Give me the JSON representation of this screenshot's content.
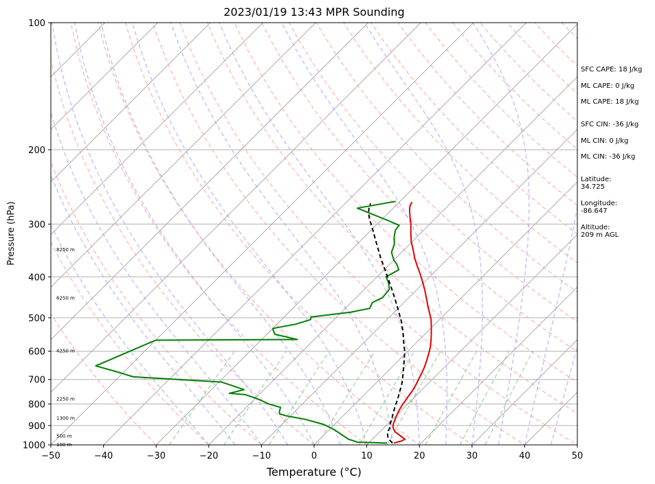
{
  "chart_data": {
    "type": "line",
    "title": "2023/01/19 13:43 MPR Sounding",
    "xlabel": "Temperature (°C)",
    "ylabel": "Pressure (hPa)",
    "xlim": [
      -50,
      50
    ],
    "ylim": [
      1000,
      100
    ],
    "y_scale": "log",
    "x_ticks": [
      -50,
      -40,
      -30,
      -20,
      -10,
      0,
      10,
      20,
      30,
      40,
      50
    ],
    "y_ticks": [
      1000,
      900,
      800,
      700,
      600,
      500,
      400,
      300,
      200,
      100
    ],
    "grid": "horizontal at labeled pressure ticks",
    "skew": "skew-T log-P (isotherms skewed 45°)",
    "series": [
      {
        "kind": "temperature",
        "color": "#e00000",
        "points": [
          [
            14.8,
            990
          ],
          [
            15.8,
            980
          ],
          [
            16.2,
            970
          ],
          [
            14.5,
            950
          ],
          [
            12.8,
            930
          ],
          [
            11.7,
            910
          ],
          [
            11,
            890
          ],
          [
            10.3,
            860
          ],
          [
            9.6,
            830
          ],
          [
            9.1,
            800
          ],
          [
            9,
            790
          ],
          [
            8.7,
            770
          ],
          [
            8.4,
            745
          ],
          [
            7.9,
            720
          ],
          [
            7.4,
            700
          ],
          [
            6.9,
            680
          ],
          [
            6.2,
            655
          ],
          [
            5.3,
            630
          ],
          [
            4.3,
            605
          ],
          [
            3.4,
            585
          ],
          [
            2.3,
            565
          ],
          [
            1.1,
            545
          ],
          [
            -0.2,
            525
          ],
          [
            -1.6,
            505
          ],
          [
            -2.9,
            490
          ],
          [
            -4.7,
            470
          ],
          [
            -6.5,
            450
          ],
          [
            -8.4,
            430
          ],
          [
            -10.5,
            410
          ],
          [
            -12.2,
            395
          ],
          [
            -14.3,
            378
          ],
          [
            -16.3,
            362
          ],
          [
            -18.3,
            345
          ],
          [
            -20.2,
            330
          ],
          [
            -21.9,
            315
          ],
          [
            -23.6,
            300
          ],
          [
            -25.2,
            288
          ],
          [
            -26.5,
            278
          ],
          [
            -27.2,
            272
          ],
          [
            -27.6,
            266
          ]
        ]
      },
      {
        "kind": "dewpoint",
        "color": "#007f00",
        "points": [
          [
            13.5,
            990
          ],
          [
            7.7,
            985
          ],
          [
            5.5,
            970
          ],
          [
            3.2,
            945
          ],
          [
            0.9,
            920
          ],
          [
            -2,
            895
          ],
          [
            -6.5,
            870
          ],
          [
            -10.5,
            855
          ],
          [
            -12.4,
            845
          ],
          [
            -12.9,
            835
          ],
          [
            -13.5,
            815
          ],
          [
            -16.4,
            800
          ],
          [
            -18.5,
            785
          ],
          [
            -20,
            775
          ],
          [
            -22.7,
            760
          ],
          [
            -25.9,
            755
          ],
          [
            -23.8,
            740
          ],
          [
            -29.5,
            710
          ],
          [
            -47.3,
            690
          ],
          [
            -50.5,
            675
          ],
          [
            -56.5,
            650
          ],
          [
            -50,
            565
          ],
          [
            -23.2,
            563
          ],
          [
            -28.5,
            547
          ],
          [
            -30,
            530
          ],
          [
            -26.5,
            518
          ],
          [
            -24.5,
            505
          ],
          [
            -24.9,
            498
          ],
          [
            -18.3,
            485
          ],
          [
            -15.4,
            475
          ],
          [
            -16,
            460
          ],
          [
            -15,
            448
          ],
          [
            -15.3,
            428
          ],
          [
            -16.8,
            412
          ],
          [
            -18.3,
            400
          ],
          [
            -17.2,
            385
          ],
          [
            -18.7,
            373
          ],
          [
            -20,
            365
          ],
          [
            -21.9,
            350
          ],
          [
            -22.9,
            335
          ],
          [
            -24.3,
            322
          ],
          [
            -25.4,
            310
          ],
          [
            -25.6,
            302
          ],
          [
            -29.1,
            293
          ],
          [
            -32.5,
            285
          ],
          [
            -36.8,
            275
          ],
          [
            -30.8,
            265
          ]
        ]
      },
      {
        "kind": "parcel",
        "color": "#000000",
        "style": "dashed",
        "points": [
          [
            14.5,
            990
          ],
          [
            13.5,
            975
          ],
          [
            12.6,
            960
          ],
          [
            11.6,
            935
          ],
          [
            11.1,
            910
          ],
          [
            10.4,
            890
          ],
          [
            9.9,
            870
          ],
          [
            9.1,
            845
          ],
          [
            8.2,
            815
          ],
          [
            7.2,
            780
          ],
          [
            6.2,
            750
          ],
          [
            5.1,
            718
          ],
          [
            3.9,
            690
          ],
          [
            2.5,
            660
          ],
          [
            1,
            630
          ],
          [
            -0.6,
            600
          ],
          [
            -2.6,
            570
          ],
          [
            -4.6,
            540
          ],
          [
            -6.9,
            510
          ],
          [
            -9.6,
            480
          ],
          [
            -12.5,
            450
          ],
          [
            -15.7,
            420
          ],
          [
            -19.2,
            390
          ],
          [
            -23,
            360
          ],
          [
            -26.9,
            330
          ],
          [
            -30.4,
            305
          ],
          [
            -32.4,
            292
          ],
          [
            -33.8,
            282
          ],
          [
            -34.7,
            274
          ],
          [
            -35.2,
            268
          ]
        ]
      }
    ],
    "background_lines": {
      "isotherms": {
        "color": "#a0a0a0",
        "style": "solid"
      },
      "dry_adiabats": {
        "color": "#ff9999",
        "style": "dashed"
      },
      "moist_adiabats": {
        "color": "#9999ff",
        "style": "dashed"
      },
      "mixing_ratio": {
        "color": "#88cc88",
        "style": "dashed"
      }
    },
    "height_labels": [
      "100 m",
      "500 m",
      "1300 m",
      "2250 m",
      "4250 m",
      "6250 m",
      "8250 m"
    ],
    "height_label_pressures": [
      1000,
      955,
      865,
      780,
      600,
      450,
      345
    ]
  },
  "sidebar": {
    "sfc_cape": "SFC CAPE: 18 J/kg",
    "ml_cape_1": "ML CAPE: 0 J/kg",
    "ml_cape_2": "ML CAPE: 18 J/kg",
    "sfc_cin": "SFC CIN: -36 J/kg",
    "ml_cin_1": "ML CIN: 0 J/kg",
    "ml_cin_2": "ML CIN: -36 J/kg",
    "lat_label": "Latitude:",
    "lat_value": "34.725",
    "lon_label": "Longitude:",
    "lon_value": "-86.647",
    "alt_label": "Altitude:",
    "alt_value": "209 m AGL"
  }
}
